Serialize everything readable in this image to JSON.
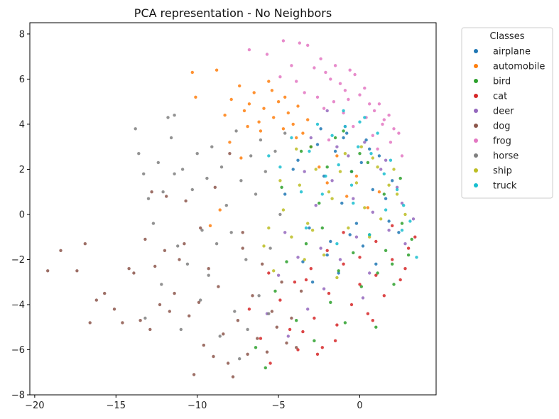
{
  "chart_data": {
    "type": "scatter",
    "title": "PCA representation - No Neighbors",
    "xlabel": "",
    "ylabel": "",
    "xlim": [
      -20.3,
      4.7
    ],
    "ylim": [
      -8.0,
      8.5
    ],
    "xticks": [
      -20,
      -15,
      -10,
      -5,
      0
    ],
    "yticks": [
      -8,
      -6,
      -4,
      -2,
      0,
      2,
      4,
      6,
      8
    ],
    "grid": false,
    "legend": {
      "title": "Classes",
      "placement": "outside-top-right"
    },
    "series": [
      {
        "name": "airplane",
        "color": "#1f77b4",
        "x": [
          -4.6,
          -3.8,
          -3.1,
          -2.6,
          -2.2,
          -1.8,
          -1.5,
          -1.1,
          -0.8,
          -0.5,
          -0.2,
          0.1,
          0.4,
          0.8,
          1.2,
          1.6,
          2.0,
          2.4,
          -3.5,
          -2.9,
          -2.0,
          -1.3,
          -0.6,
          0.2,
          1.0,
          1.8,
          -4.1,
          -2.4,
          -1.0,
          0.6
        ],
        "y": [
          0.9,
          2.4,
          -0.6,
          3.1,
          1.7,
          -1.2,
          2.8,
          0.5,
          3.6,
          1.9,
          -0.4,
          2.3,
          3.3,
          1.1,
          2.6,
          0.7,
          1.5,
          -0.8,
          -2.1,
          -3.0,
          -1.8,
          -2.6,
          -0.9,
          -1.4,
          -2.2,
          -0.3,
          2.0,
          3.8,
          3.4,
          2.9
        ]
      },
      {
        "name": "automobile",
        "color": "#ff7f0e",
        "x": [
          -10.3,
          -10.1,
          -8.8,
          -8.3,
          -7.9,
          -7.4,
          -7.1,
          -6.8,
          -6.5,
          -6.2,
          -5.9,
          -5.6,
          -5.3,
          -5.0,
          -4.7,
          -4.4,
          -4.1,
          -3.8,
          -3.5,
          -3.2,
          -6.9,
          -6.1,
          -5.4,
          -4.6,
          -3.9,
          -8.0,
          -7.3,
          -3.0,
          -2.5,
          -2.0,
          -1.4,
          -0.8,
          -0.2,
          0.5,
          1.2,
          -9.2,
          -8.6
        ],
        "y": [
          6.3,
          5.2,
          6.4,
          4.4,
          5.1,
          5.7,
          4.6,
          4.9,
          5.4,
          4.1,
          4.7,
          5.9,
          4.3,
          5.0,
          3.8,
          4.5,
          4.0,
          4.8,
          3.6,
          4.2,
          3.9,
          3.7,
          5.5,
          5.2,
          3.4,
          3.2,
          2.5,
          3.0,
          2.1,
          1.4,
          2.6,
          0.8,
          1.7,
          0.3,
          1.0,
          -0.5,
          0.2
        ]
      },
      {
        "name": "bird",
        "color": "#2ca02c",
        "x": [
          -5.2,
          -4.5,
          -3.9,
          -3.3,
          -2.8,
          -2.3,
          -1.8,
          -1.3,
          -0.9,
          -0.4,
          0.1,
          0.6,
          1.1,
          1.6,
          2.1,
          2.6,
          3.0,
          -4.8,
          -3.6,
          -2.5,
          -1.5,
          -0.5,
          0.5,
          1.5,
          2.5,
          -3.0,
          -2.0,
          -1.0,
          0.0,
          1.0,
          2.0,
          3.2,
          -6.4,
          -5.8
        ],
        "y": [
          -3.4,
          -2.1,
          -4.7,
          -1.3,
          -5.6,
          -0.6,
          -3.9,
          -2.5,
          -4.8,
          -1.7,
          -3.2,
          -0.9,
          -2.6,
          -1.6,
          -3.1,
          -0.4,
          -1.8,
          1.2,
          2.8,
          0.5,
          3.4,
          1.9,
          2.3,
          0.9,
          1.6,
          3.0,
          2.1,
          3.7,
          2.7,
          -5.0,
          -2.2,
          -1.1,
          -5.9,
          -6.8
        ]
      },
      {
        "name": "cat",
        "color": "#d62728",
        "x": [
          -6.8,
          -6.1,
          -5.5,
          -4.9,
          -4.3,
          -3.8,
          -3.3,
          -2.8,
          -2.3,
          -1.9,
          -1.4,
          -1.0,
          -0.5,
          0.0,
          0.5,
          1.0,
          1.5,
          2.0,
          2.5,
          3.0,
          3.4,
          -4.0,
          -3.0,
          -2.0,
          -1.0,
          0.0,
          1.0,
          2.0,
          -5.6,
          -3.5,
          -1.5,
          0.8,
          2.8,
          -2.6
        ],
        "y": [
          -4.2,
          -5.5,
          -6.6,
          -3.8,
          -5.1,
          -6.0,
          -2.9,
          -4.6,
          -5.9,
          -3.5,
          -4.9,
          -2.2,
          -4.0,
          -3.1,
          -4.4,
          -2.7,
          -3.6,
          -2.0,
          -2.9,
          -1.5,
          -1.0,
          -3.0,
          -2.4,
          -1.6,
          -0.8,
          -1.9,
          -1.2,
          -0.5,
          -2.6,
          -5.2,
          -5.6,
          -4.7,
          -2.4,
          -6.2
        ]
      },
      {
        "name": "deer",
        "color": "#9467bd",
        "x": [
          -5.7,
          -5.0,
          -4.4,
          -3.8,
          -3.2,
          -2.7,
          -2.2,
          -1.7,
          -1.2,
          -0.7,
          -0.2,
          0.3,
          0.8,
          1.3,
          1.8,
          2.3,
          2.8,
          3.3,
          -4.6,
          -3.4,
          -2.4,
          -1.4,
          -0.4,
          0.6,
          1.6,
          2.6,
          -2.0,
          -0.9,
          -3.0,
          0.2
        ],
        "y": [
          -4.4,
          -2.7,
          -5.4,
          -1.9,
          -4.2,
          0.4,
          -3.3,
          1.5,
          -2.0,
          2.6,
          -1.0,
          3.2,
          0.1,
          2.0,
          -0.7,
          1.2,
          -1.3,
          -0.2,
          -0.8,
          1.9,
          -1.5,
          3.0,
          0.7,
          -2.6,
          2.4,
          0.5,
          4.6,
          3.9,
          3.4,
          -3.7
        ]
      },
      {
        "name": "dog",
        "color": "#8c564b",
        "x": [
          -19.2,
          -18.4,
          -17.4,
          -16.9,
          -16.6,
          -16.2,
          -15.7,
          -15.1,
          -14.6,
          -14.2,
          -13.9,
          -13.5,
          -13.2,
          -12.9,
          -12.6,
          -12.3,
          -12.0,
          -11.7,
          -11.4,
          -11.1,
          -10.8,
          -10.5,
          -10.2,
          -9.9,
          -9.6,
          -9.3,
          -9.0,
          -8.7,
          -8.4,
          -8.1,
          -7.8,
          -7.5,
          -7.2,
          -6.9,
          -6.6,
          -6.3,
          -6.0,
          -5.7,
          -5.4,
          -5.1,
          -4.8,
          -4.5,
          -4.2,
          -3.9,
          -3.6,
          -10.7,
          -9.8,
          -8.9,
          -8.0,
          -7.2,
          -12.8,
          -11.9
        ],
        "y": [
          -2.5,
          -1.6,
          -2.5,
          -1.3,
          -4.8,
          -3.8,
          -3.5,
          -4.2,
          -4.8,
          -2.4,
          -2.6,
          -4.7,
          -1.1,
          -5.1,
          -2.3,
          -4.0,
          -1.6,
          -4.3,
          -3.5,
          -2.0,
          -1.3,
          -4.5,
          -7.1,
          -3.9,
          -5.8,
          -2.4,
          -6.3,
          -3.2,
          -5.3,
          -6.6,
          -7.2,
          -4.7,
          -0.8,
          -6.2,
          -3.6,
          -5.5,
          -2.2,
          -6.1,
          -4.3,
          -5.0,
          -3.0,
          -5.7,
          -4.6,
          -5.9,
          -3.4,
          0.6,
          -0.6,
          1.2,
          2.7,
          -1.5,
          1.0,
          0.8
        ]
      },
      {
        "name": "frog",
        "color": "#e377c2",
        "x": [
          -6.8,
          -5.7,
          -4.7,
          -4.2,
          -3.7,
          -3.2,
          -2.8,
          -2.4,
          -2.1,
          -1.8,
          -1.5,
          -1.2,
          -0.9,
          -0.6,
          -0.3,
          0.0,
          0.3,
          0.6,
          0.9,
          1.2,
          1.5,
          1.8,
          2.1,
          2.4,
          -3.9,
          -2.6,
          -1.6,
          -0.7,
          0.4,
          1.4,
          -4.9,
          -3.4,
          -2.2,
          -1.0,
          0.8,
          1.9,
          2.6,
          -0.4,
          -1.9,
          1.1
        ],
        "y": [
          7.3,
          7.1,
          7.7,
          6.6,
          7.6,
          7.5,
          6.5,
          6.9,
          6.3,
          6.0,
          6.6,
          5.8,
          5.5,
          6.4,
          6.2,
          5.3,
          5.6,
          4.9,
          4.6,
          4.9,
          4.2,
          4.4,
          3.8,
          3.6,
          5.9,
          5.2,
          5.0,
          5.1,
          4.3,
          4.0,
          6.1,
          5.4,
          4.7,
          4.5,
          3.5,
          3.2,
          2.6,
          3.9,
          3.3,
          2.9
        ]
      },
      {
        "name": "horse",
        "color": "#7f7f7f",
        "x": [
          -13.8,
          -13.6,
          -13.3,
          -13.0,
          -12.7,
          -12.4,
          -12.1,
          -11.8,
          -11.6,
          -11.4,
          -11.2,
          -10.9,
          -10.6,
          -10.3,
          -10.0,
          -9.7,
          -9.4,
          -9.1,
          -8.8,
          -8.5,
          -8.2,
          -7.9,
          -7.6,
          -7.3,
          -7.0,
          -6.7,
          -6.4,
          -6.1,
          -5.8,
          -5.5,
          -5.2,
          -4.9,
          -4.6,
          -11.4,
          -12.2,
          -9.8,
          -8.6,
          -7.7,
          -6.9,
          -6.2,
          -5.6,
          -13.2,
          -11.0,
          -9.3,
          -7.4
        ],
        "y": [
          3.8,
          2.7,
          1.8,
          0.7,
          -0.4,
          2.3,
          1.0,
          4.3,
          3.4,
          1.8,
          -1.4,
          2.0,
          -2.2,
          1.1,
          2.7,
          -0.7,
          1.6,
          3.0,
          -1.3,
          2.1,
          0.4,
          -0.8,
          3.7,
          1.5,
          -2.0,
          2.6,
          0.9,
          3.3,
          1.9,
          -1.5,
          2.8,
          0.0,
          3.6,
          4.4,
          -3.1,
          -3.8,
          -5.4,
          -4.3,
          -5.1,
          -3.6,
          -4.4,
          -4.6,
          -5.1,
          -2.7,
          -6.4
        ]
      },
      {
        "name": "ship",
        "color": "#bcbd22",
        "x": [
          -5.9,
          -5.3,
          -4.7,
          -4.2,
          -3.7,
          -3.2,
          -2.7,
          -2.2,
          -1.7,
          -1.2,
          -0.7,
          -0.2,
          0.3,
          0.8,
          1.3,
          1.8,
          2.3,
          2.8,
          -4.9,
          -3.9,
          -2.9,
          -1.9,
          -0.9,
          0.1,
          1.1,
          2.1,
          -5.6,
          -3.4,
          -1.4,
          0.6
        ],
        "y": [
          -1.4,
          -2.5,
          0.2,
          -1.0,
          1.3,
          -0.4,
          2.0,
          -1.8,
          0.7,
          1.9,
          -0.6,
          1.4,
          0.3,
          2.5,
          -0.2,
          1.3,
          0.9,
          0.0,
          1.5,
          2.9,
          -0.7,
          1.0,
          2.7,
          3.0,
          2.1,
          2.0,
          -0.6,
          -2.0,
          -2.8,
          -1.0
        ]
      },
      {
        "name": "truck",
        "color": "#17becf",
        "x": [
          -5.6,
          -4.9,
          -4.2,
          -3.6,
          -3.1,
          -2.6,
          -2.1,
          -1.7,
          -1.3,
          -0.9,
          -0.5,
          -0.1,
          0.3,
          0.7,
          1.1,
          1.5,
          1.9,
          2.3,
          2.7,
          3.1,
          3.5,
          -3.3,
          -2.3,
          -1.4,
          -0.4,
          0.6,
          1.6,
          2.6,
          -1.0,
          0.0
        ],
        "y": [
          2.6,
          2.1,
          3.4,
          1.0,
          2.8,
          4.0,
          1.7,
          3.5,
          2.2,
          3.9,
          1.3,
          3.0,
          4.3,
          2.7,
          3.6,
          1.8,
          2.4,
          1.1,
          0.4,
          -0.3,
          -1.9,
          -0.6,
          0.9,
          -1.3,
          0.5,
          -0.9,
          0.2,
          -0.7,
          4.6,
          4.1
        ]
      }
    ]
  }
}
